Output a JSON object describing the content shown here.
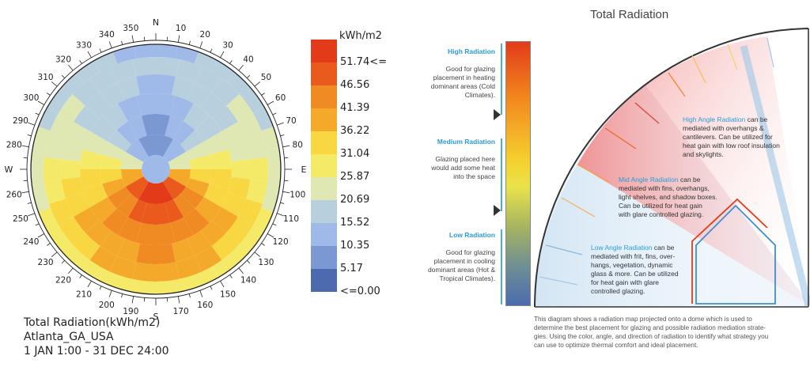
{
  "dome": {
    "compass": {
      "north": "N",
      "south": "S",
      "east": "E",
      "west": "W"
    },
    "degree_labels": [
      "10",
      "20",
      "30",
      "40",
      "50",
      "60",
      "70",
      "80",
      "100",
      "110",
      "120",
      "130",
      "140",
      "150",
      "160",
      "170",
      "190",
      "200",
      "210",
      "220",
      "230",
      "240",
      "250",
      "260",
      "280",
      "290",
      "300",
      "310",
      "320",
      "330",
      "340",
      "350"
    ],
    "caption_line1": "Total Radiation(kWh/m2)",
    "caption_line2": "Atlanta_GA_USA",
    "caption_line3": "1 JAN 1:00 - 31 DEC 24:00"
  },
  "legend": {
    "unit": "kWh/m2",
    "entries": [
      {
        "label": "51.74<=",
        "color": "#e33b19"
      },
      {
        "label": "46.56",
        "color": "#ea5a1c"
      },
      {
        "label": "41.39",
        "color": "#f08a23"
      },
      {
        "label": "36.22",
        "color": "#f5a92b"
      },
      {
        "label": "31.04",
        "color": "#f8d743"
      },
      {
        "label": "25.87",
        "color": "#f5ea67"
      },
      {
        "label": "20.69",
        "color": "#dfe7b2"
      },
      {
        "label": "15.52",
        "color": "#b8d0de"
      },
      {
        "label": "10.35",
        "color": "#9fb9e8"
      },
      {
        "label": "5.17",
        "color": "#7b98d3"
      },
      {
        "label": "<=0.00",
        "color": "#4e6aaf"
      }
    ]
  },
  "diagram": {
    "title": "Total Radiation",
    "high_heading": "High Radiation",
    "high_text": [
      "Good for glazing",
      "placement in heating",
      "dominant areas (Cold",
      "Climates)."
    ],
    "medium_heading": "Medium Radiation",
    "medium_text": [
      "Glazing placed here",
      "would add some heat",
      "into the space"
    ],
    "low_heading": "Low Radiation",
    "low_text": [
      "Good for glazing",
      "placement in cooling",
      "dominant areas (Hot &",
      "Tropical Climates)."
    ],
    "high_angle_label": "High Angle Radiation",
    "high_angle_text": [
      " can be",
      "mediated with overhangs &",
      "cantilevers. Can be utilized for",
      "heat gain with low roof insulation",
      "and skylights."
    ],
    "mid_angle_label": "Mid Angle Radiation",
    "mid_angle_text": [
      " can be",
      "mediated with fins, overhangs,",
      "light shelves, and shadow boxes.",
      "Can be utilized for heat gain",
      "with glare controlled glazing."
    ],
    "low_angle_label": "Low Angle Radiation",
    "low_angle_text": [
      " can be",
      "mediated with frit, fins, over-",
      "hangs, vegetation, dynamic",
      "glass & more. Can be utilized",
      "for heat gain with glare",
      "controlled glazing."
    ],
    "footer": [
      "This diagram shows a radiation map projected onto a dome which is used to",
      "determine the best placement for glazing and possible radiation mediation strate-",
      "gies. Using the color, angle, and direction of radiation to identify what strategy you",
      "can use to optimize thermal comfort and ideal placement."
    ]
  }
}
